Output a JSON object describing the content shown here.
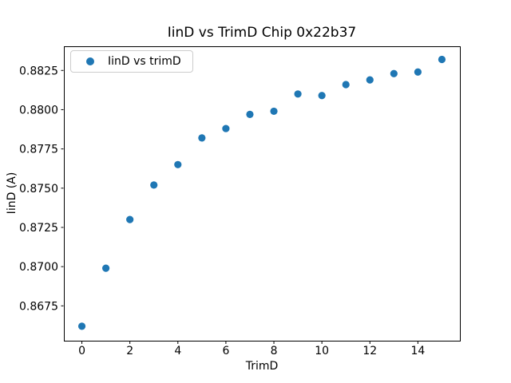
{
  "figure": {
    "background_color": "#ffffff",
    "spine_color": "#000000",
    "text_color": "#000000"
  },
  "chart_data": {
    "type": "scatter",
    "title": "IinD vs TrimD Chip 0x22b37",
    "xlabel": "TrimD",
    "ylabel": "IinD (A)",
    "grid": false,
    "marker_color": "#1f77b4",
    "legend": {
      "position": "upper left",
      "entries": [
        {
          "label": "IinD vs trimD",
          "marker": "dot",
          "marker_color": "#1f77b4"
        }
      ]
    },
    "series": [
      {
        "name": "IinD vs trimD",
        "x": [
          0,
          1,
          2,
          3,
          4,
          5,
          6,
          7,
          8,
          9,
          10,
          11,
          12,
          13,
          14,
          15
        ],
        "y": [
          0.8662,
          0.8699,
          0.873,
          0.8752,
          0.8765,
          0.8782,
          0.8788,
          0.8797,
          0.8799,
          0.881,
          0.8809,
          0.8816,
          0.8819,
          0.8823,
          0.8824,
          0.8832
        ]
      }
    ],
    "xlim": [
      -0.75,
      15.75
    ],
    "ylim": [
      0.86528,
      0.88404
    ],
    "xticks": [
      0,
      2,
      4,
      6,
      8,
      10,
      12,
      14
    ],
    "yticks": [
      0.8675,
      0.87,
      0.8725,
      0.875,
      0.8775,
      0.88,
      0.8825
    ],
    "ytick_decimals": 4
  }
}
